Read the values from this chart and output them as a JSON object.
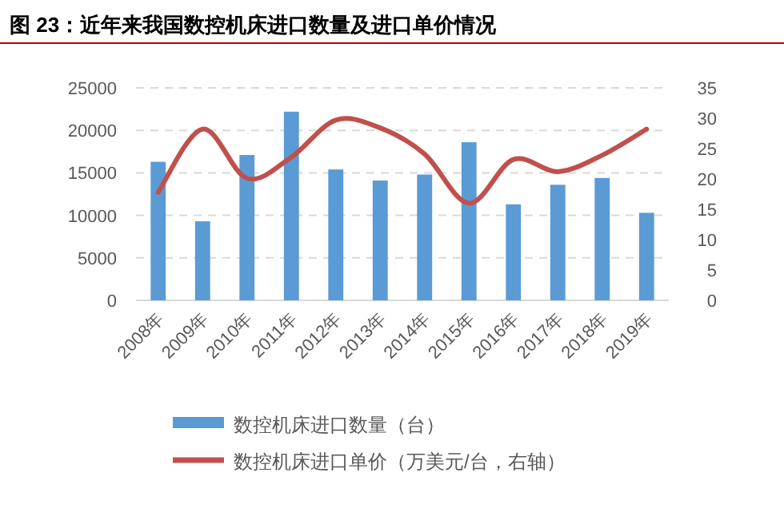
{
  "chart_data": {
    "type": "bar",
    "title": "图 23：近年来我国数控机床进口数量及进口单价情况",
    "categories": [
      "2008年",
      "2009年",
      "2010年",
      "2011年",
      "2012年",
      "2013年",
      "2014年",
      "2015年",
      "2016年",
      "2017年",
      "2018年",
      "2019年"
    ],
    "series": [
      {
        "name": "数控机床进口数量（台）",
        "color": "#5b9bd5",
        "values": [
          16300,
          9300,
          17100,
          22200,
          15400,
          14100,
          14800,
          18600,
          11300,
          13600,
          14400,
          10300
        ]
      },
      {
        "name": "数控机床进口单价（万美元/台，右轴）",
        "type": "line",
        "axis": "y2",
        "color": "#c0504d",
        "values": [
          17.8,
          28.2,
          20.1,
          23.6,
          29.7,
          28.4,
          24.1,
          16.0,
          23.2,
          21.2,
          23.9,
          28.2
        ]
      }
    ],
    "ylim": [
      0,
      25000
    ],
    "yticks": [
      0,
      5000,
      10000,
      15000,
      20000,
      25000
    ],
    "y2lim": [
      0,
      35
    ],
    "y2ticks": [
      0,
      5,
      10,
      15,
      20,
      25,
      30,
      35
    ],
    "grid": "y",
    "legend": "bottom"
  }
}
